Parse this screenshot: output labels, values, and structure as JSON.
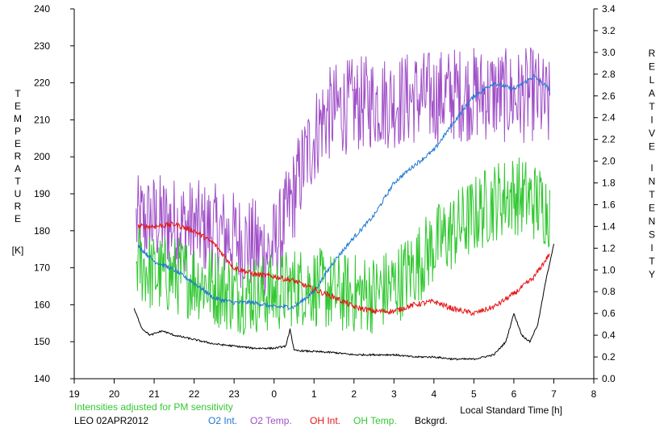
{
  "chart_data": {
    "type": "line",
    "xlabel": "Local Standard Time [h]",
    "left_axis": {
      "label_letters": [
        "T",
        "E",
        "M",
        "P",
        "E",
        "R",
        "A",
        "T",
        "U",
        "R",
        "E"
      ],
      "unit": "[K]",
      "range": [
        140,
        240
      ],
      "ticks": [
        "140",
        "150",
        "160",
        "170",
        "180",
        "190",
        "200",
        "210",
        "220",
        "230",
        "240"
      ]
    },
    "right_axis": {
      "label_word1": [
        "R",
        "E",
        "L",
        "A",
        "T",
        "I",
        "V",
        "E"
      ],
      "label_word2": [
        "I",
        "N",
        "T",
        "E",
        "N",
        "S",
        "I",
        "T",
        "Y"
      ],
      "range": [
        0.0,
        3.4
      ],
      "ticks": [
        "0.0",
        "0.2",
        "0.4",
        "0.6",
        "0.8",
        "1.0",
        "1.2",
        "1.4",
        "1.6",
        "1.8",
        "2.0",
        "2.2",
        "2.4",
        "2.6",
        "2.8",
        "3.0",
        "3.2",
        "3.4"
      ]
    },
    "x_axis": {
      "range": [
        19,
        32
      ],
      "ticks": [
        "19",
        "20",
        "21",
        "22",
        "23",
        "0",
        "1",
        "2",
        "3",
        "4",
        "5",
        "6",
        "7",
        "8"
      ]
    },
    "note": "Intensities adjusted for PM sensitivity",
    "station": "LEO 02APR2012",
    "legend": [
      {
        "name": "O2 Int.",
        "color": "#1e78d2"
      },
      {
        "name": "O2 Temp.",
        "color": "#a050c8"
      },
      {
        "name": "OH Int.",
        "color": "#e61414"
      },
      {
        "name": "OH Temp.",
        "color": "#32c832"
      },
      {
        "name": "Bckgrd.",
        "color": "#000000"
      }
    ],
    "series": [
      {
        "name": "O2 Temp.",
        "axis": "left",
        "color": "#a050c8",
        "noise": 13,
        "x": [
          20.55,
          21,
          21.5,
          22,
          22.5,
          23,
          23.5,
          23.9,
          24.2,
          24.5,
          24.8,
          25.2,
          25.6,
          26,
          26.5,
          27,
          27.5,
          28,
          28.5,
          29,
          29.5,
          30,
          30.5,
          30.9
        ],
        "y": [
          182,
          183,
          182,
          181,
          180,
          178,
          176,
          174,
          180,
          190,
          200,
          210,
          213,
          214,
          215,
          215,
          216,
          216,
          217,
          217,
          217,
          216,
          217,
          213
        ]
      },
      {
        "name": "OH Temp.",
        "axis": "left",
        "color": "#32c832",
        "noise": 11,
        "x": [
          20.55,
          21,
          21.5,
          22,
          22.5,
          23,
          23.5,
          24,
          24.5,
          25,
          25.5,
          26,
          26.5,
          27,
          27.5,
          28,
          28.5,
          29,
          29.5,
          30,
          30.5,
          30.9
        ],
        "y": [
          172,
          168,
          168,
          167,
          165,
          163,
          163,
          163,
          165,
          165,
          163,
          163,
          163,
          165,
          170,
          176,
          180,
          184,
          188,
          190,
          188,
          186
        ]
      },
      {
        "name": "O2 Int.",
        "axis": "right",
        "color": "#1e78d2",
        "noise": 0.02,
        "x": [
          20.6,
          21,
          21.5,
          22,
          22.5,
          23,
          23.5,
          24,
          24.5,
          25,
          25.5,
          26,
          26.5,
          27,
          27.5,
          28,
          28.5,
          29,
          29.5,
          30,
          30.5,
          30.9
        ],
        "y": [
          1.22,
          1.08,
          1.0,
          0.88,
          0.74,
          0.7,
          0.7,
          0.66,
          0.66,
          0.8,
          1.08,
          1.3,
          1.5,
          1.8,
          1.96,
          2.1,
          2.36,
          2.6,
          2.72,
          2.66,
          2.78,
          2.66
        ]
      },
      {
        "name": "OH Int.",
        "axis": "right",
        "color": "#e61414",
        "noise": 0.025,
        "x": [
          20.6,
          21,
          21.5,
          22,
          22.5,
          23,
          23.5,
          24,
          24.5,
          25,
          25.5,
          26,
          26.5,
          27,
          27.5,
          28,
          28.5,
          29,
          29.5,
          30,
          30.5,
          30.9
        ],
        "y": [
          1.4,
          1.4,
          1.42,
          1.36,
          1.24,
          1.02,
          0.96,
          0.94,
          0.9,
          0.82,
          0.75,
          0.66,
          0.62,
          0.62,
          0.68,
          0.71,
          0.64,
          0.6,
          0.66,
          0.78,
          0.93,
          1.15
        ]
      },
      {
        "name": "Bckgrd.",
        "axis": "right",
        "color": "#000000",
        "noise": 0.008,
        "x": [
          20.5,
          20.7,
          20.9,
          21.2,
          21.5,
          22,
          22.5,
          23,
          23.5,
          24,
          24.3,
          24.4,
          24.5,
          25,
          25.5,
          26,
          26.5,
          27,
          27.5,
          28,
          28.5,
          29,
          29.5,
          29.8,
          30,
          30.2,
          30.4,
          30.6,
          30.8,
          31
        ],
        "y": [
          0.64,
          0.46,
          0.4,
          0.44,
          0.4,
          0.36,
          0.32,
          0.3,
          0.28,
          0.28,
          0.3,
          0.46,
          0.26,
          0.25,
          0.24,
          0.22,
          0.22,
          0.22,
          0.2,
          0.2,
          0.18,
          0.18,
          0.22,
          0.34,
          0.6,
          0.4,
          0.34,
          0.5,
          0.9,
          1.24
        ]
      }
    ]
  }
}
